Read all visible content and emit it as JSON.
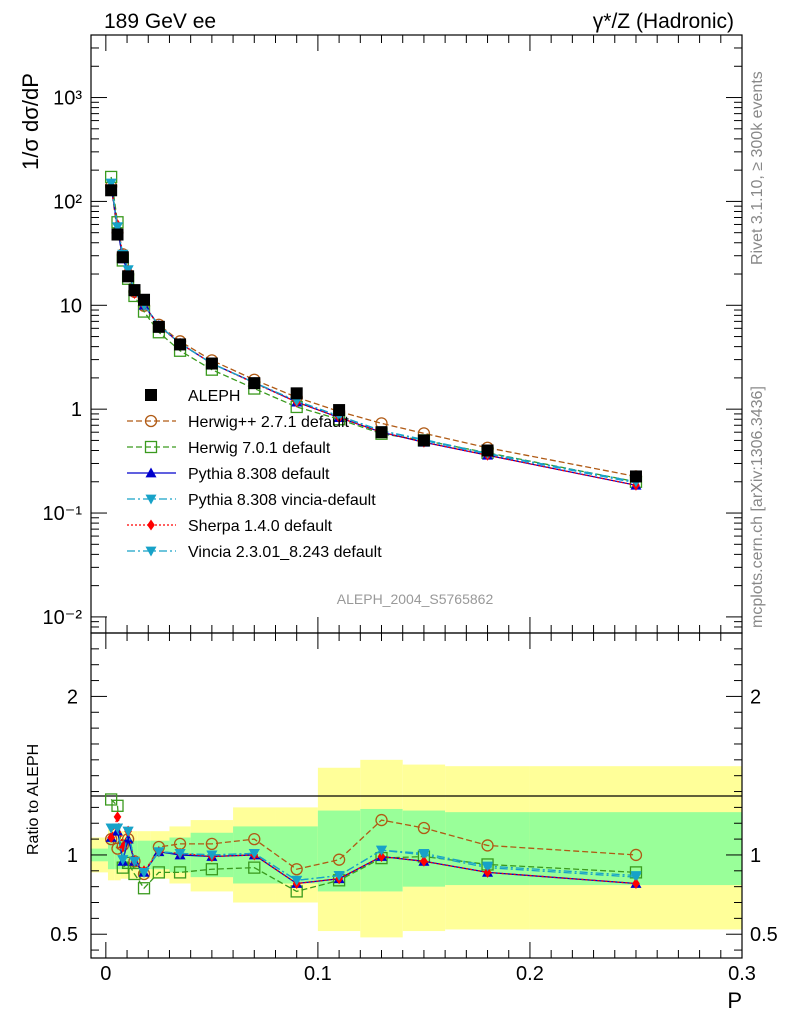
{
  "header": {
    "left": "189 GeV ee",
    "right": "γ*/Z (Hadronic)"
  },
  "side_labels": {
    "rivet": "Rivet 3.1.10, ≥ 300k events",
    "mcplots": "mcplots.cern.ch [arXiv:1306.3436]"
  },
  "watermark": "ALEPH_2004_S5765862",
  "colors": {
    "data": "#000000",
    "herwigpp": "#b05a14",
    "herwig7": "#3a9a1e",
    "pythia": "#0000cc",
    "pythia_vincia": "#17a2c8",
    "sherpa": "#ff0000",
    "vincia": "#17a2c8",
    "band_stat": "#99ff99",
    "band_tot": "#ffff99"
  },
  "chart_data": [
    {
      "type": "scatter",
      "panel": "main",
      "ylabel": "1/σ  dσ/dP",
      "yscale": "log",
      "ylim": [
        0.007,
        4000
      ],
      "xlim": [
        -0.007,
        0.3
      ],
      "ytick_labels": [
        "10⁻²",
        "10⁻¹",
        "1",
        "10",
        "10²",
        "10³"
      ],
      "x": [
        0.0025,
        0.0055,
        0.008,
        0.0105,
        0.0135,
        0.018,
        0.025,
        0.035,
        0.05,
        0.07,
        0.09,
        0.11,
        0.13,
        0.15,
        0.18,
        0.25
      ],
      "series": [
        {
          "name": "ALEPH",
          "key": "data",
          "values": [
            128,
            48,
            29,
            19,
            14,
            11.3,
            6.2,
            4.2,
            2.75,
            1.78,
            1.42,
            0.98,
            0.6,
            0.5,
            0.4,
            0.225
          ]
        },
        {
          "name": "Herwig++ 2.7.1 default",
          "key": "herwigpp",
          "values": [
            140,
            50,
            31,
            19.8,
            13.5,
            9.9,
            6.5,
            4.5,
            2.95,
            1.92,
            1.3,
            0.95,
            0.73,
            0.585,
            0.425,
            0.225
          ]
        },
        {
          "name": "Herwig 7.0.1 default",
          "key": "herwig7",
          "values": [
            172,
            63,
            27,
            18,
            12.3,
            8.7,
            5.5,
            3.65,
            2.4,
            1.58,
            1.05,
            0.8,
            0.58,
            0.5,
            0.38,
            0.2
          ]
        },
        {
          "name": "Pythia 8.308 default",
          "key": "pythia",
          "values": [
            142,
            55,
            28,
            21,
            13.5,
            10,
            6.4,
            4.3,
            2.75,
            1.8,
            1.17,
            0.83,
            0.6,
            0.48,
            0.36,
            0.185
          ]
        },
        {
          "name": "Pythia 8.308 vincia-default",
          "key": "pythia_vincia",
          "values": [
            150,
            57,
            31,
            22,
            13.5,
            10,
            6.4,
            4.3,
            2.75,
            1.8,
            1.2,
            0.86,
            0.62,
            0.5,
            0.37,
            0.195
          ]
        },
        {
          "name": "Sherpa 1.4.0 default",
          "key": "sherpa",
          "values": [
            142,
            60,
            31,
            22,
            13,
            10,
            6.3,
            4.3,
            2.75,
            1.78,
            1.17,
            0.83,
            0.6,
            0.48,
            0.36,
            0.185
          ]
        },
        {
          "name": "Vincia 2.3.01_8.243 default",
          "key": "vincia",
          "values": [
            150,
            57,
            31,
            22,
            13.5,
            10,
            6.4,
            4.3,
            2.75,
            1.8,
            1.2,
            0.86,
            0.62,
            0.51,
            0.375,
            0.2
          ]
        }
      ]
    },
    {
      "type": "scatter",
      "panel": "ratio",
      "ylabel": "Ratio to ALEPH",
      "xlabel": "P",
      "ylim": [
        0.35,
        2.4
      ],
      "yticks": [
        0.5,
        1,
        2
      ],
      "ytick_labels": [
        "0.5",
        "1",
        "2"
      ],
      "xlim": [
        -0.007,
        0.3
      ],
      "xticks": [
        0,
        0.1,
        0.2,
        0.3
      ],
      "xtick_labels": [
        "0",
        "0.1",
        "0.2",
        "0.3"
      ],
      "x": [
        0.0025,
        0.0055,
        0.008,
        0.0105,
        0.0135,
        0.018,
        0.025,
        0.035,
        0.05,
        0.07,
        0.09,
        0.11,
        0.13,
        0.15,
        0.18,
        0.25
      ],
      "bands": {
        "edges": [
          -0.007,
          0.001,
          0.004,
          0.007,
          0.009,
          0.012,
          0.015,
          0.021,
          0.03,
          0.04,
          0.06,
          0.08,
          0.1,
          0.12,
          0.14,
          0.16,
          0.2,
          0.3
        ],
        "tot": [
          [
            0.89,
            1.11
          ],
          [
            0.84,
            1.16
          ],
          [
            0.84,
            1.16
          ],
          [
            0.85,
            1.15
          ],
          [
            0.85,
            1.15
          ],
          [
            0.85,
            1.15
          ],
          [
            0.85,
            1.15
          ],
          [
            0.85,
            1.15
          ],
          [
            0.82,
            1.18
          ],
          [
            0.77,
            1.22
          ],
          [
            0.7,
            1.3
          ],
          [
            0.7,
            1.3
          ],
          [
            0.52,
            1.55
          ],
          [
            0.48,
            1.6
          ],
          [
            0.52,
            1.57
          ],
          [
            0.53,
            1.56
          ],
          [
            0.53,
            1.56
          ]
        ],
        "stat": [
          [
            0.96,
            1.04
          ],
          [
            0.91,
            1.09
          ],
          [
            0.91,
            1.09
          ],
          [
            0.91,
            1.09
          ],
          [
            0.91,
            1.09
          ],
          [
            0.91,
            1.09
          ],
          [
            0.91,
            1.09
          ],
          [
            0.91,
            1.09
          ],
          [
            0.89,
            1.11
          ],
          [
            0.86,
            1.14
          ],
          [
            0.82,
            1.18
          ],
          [
            0.82,
            1.18
          ],
          [
            0.77,
            1.28
          ],
          [
            0.77,
            1.29
          ],
          [
            0.8,
            1.28
          ],
          [
            0.81,
            1.27
          ],
          [
            0.81,
            1.27
          ]
        ]
      },
      "series": [
        {
          "name": "Herwig++ 2.7.1 default",
          "key": "herwigpp",
          "values": [
            1.1,
            1.04,
            1.06,
            1.1,
            0.96,
            0.88,
            1.05,
            1.07,
            1.07,
            1.1,
            0.91,
            0.97,
            1.22,
            1.17,
            1.06,
            1.0
          ]
        },
        {
          "name": "Herwig 7.0.1 default",
          "key": "herwig7",
          "values": [
            1.35,
            1.31,
            0.92,
            0.95,
            0.88,
            0.79,
            0.89,
            0.89,
            0.91,
            0.92,
            0.77,
            0.84,
            0.98,
            0.99,
            0.94,
            0.89
          ]
        },
        {
          "name": "Pythia 8.308 default",
          "key": "pythia",
          "values": [
            1.11,
            1.15,
            0.96,
            1.1,
            0.96,
            0.89,
            1.02,
            1.0,
            0.99,
            1.0,
            0.82,
            0.85,
            0.99,
            0.96,
            0.89,
            0.82
          ]
        },
        {
          "name": "Pythia 8.308 vincia-default",
          "key": "pythia_vincia",
          "values": [
            1.17,
            1.17,
            0.97,
            1.15,
            0.96,
            0.89,
            1.02,
            1.01,
            1.0,
            1.01,
            0.84,
            0.87,
            1.03,
            1.0,
            0.92,
            0.86
          ]
        },
        {
          "name": "Sherpa 1.4.0 default",
          "key": "sherpa",
          "values": [
            1.11,
            1.24,
            1.05,
            1.15,
            0.96,
            0.9,
            1.02,
            1.01,
            0.99,
            1.0,
            0.82,
            0.85,
            0.99,
            0.96,
            0.89,
            0.82
          ]
        },
        {
          "name": "Vincia 2.3.01_8.243 default",
          "key": "vincia",
          "values": [
            1.17,
            1.17,
            0.97,
            1.15,
            0.96,
            0.89,
            1.02,
            1.01,
            1.0,
            1.01,
            0.84,
            0.87,
            1.03,
            1.01,
            0.93,
            0.87
          ]
        }
      ]
    }
  ]
}
